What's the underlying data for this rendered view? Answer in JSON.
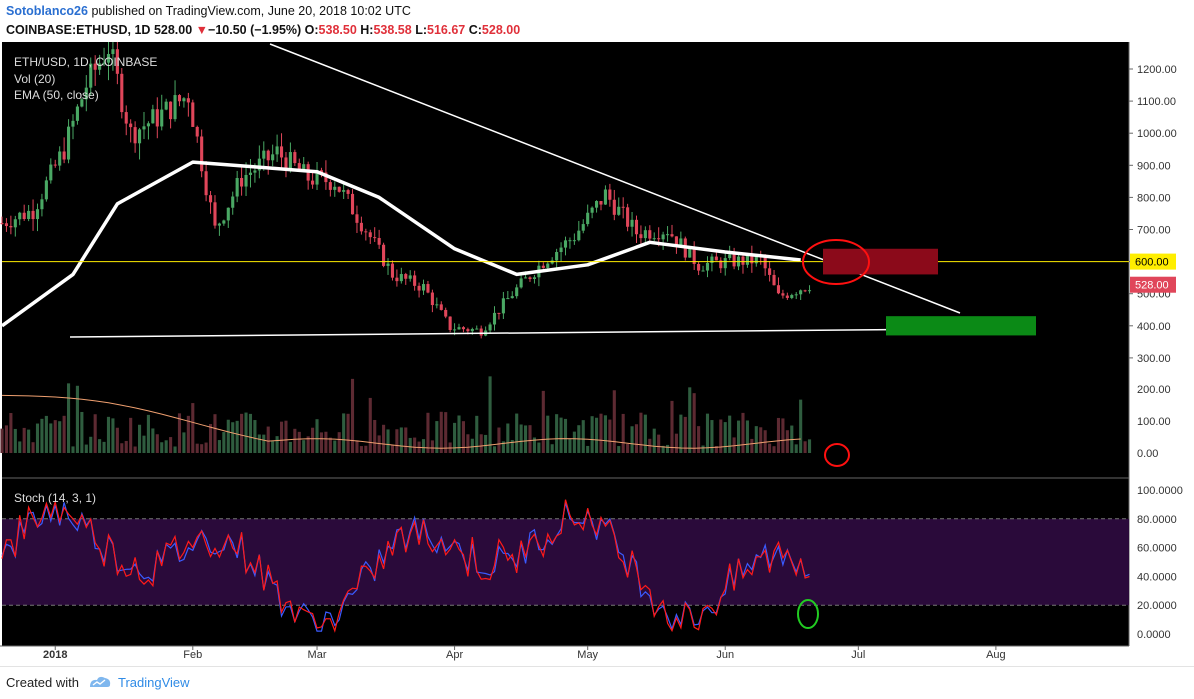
{
  "header": {
    "author": "Sotoblanco26",
    "published_text": "published on TradingView.com, June 20, 2018 10:02 UTC",
    "symbol": "COINBASE:ETHUSD, 1D",
    "last": "528.00",
    "change_arrow": "▼",
    "change": "−10.50 (−1.95%)",
    "o_label": "O:",
    "o_val": "538.50",
    "h_label": "H:",
    "h_val": "538.58",
    "l_label": "L:",
    "l_val": "516.67",
    "c_label": "C:",
    "c_val": "528.00"
  },
  "footer": {
    "created_with": "Created with",
    "brand": "TradingView"
  },
  "colors": {
    "bg": "#000000",
    "up": "#4aa864",
    "down": "#e0465a",
    "ema": "#ffffff",
    "level": "#ffee00",
    "stoch_k": "#3b5bff",
    "stoch_d": "#ff1a1a",
    "stoch_band": "#2a0a3a"
  },
  "chart_data": [
    {
      "type": "candlestick",
      "legend": [
        "ETH/USD, 1D, COINBASE",
        "Vol (20)",
        "EMA (50, close)"
      ],
      "y_ticks": [
        "1200.00",
        "1100.00",
        "1000.00",
        "900.00",
        "800.00",
        "700.00",
        "600.00",
        "500.00",
        "400.00",
        "300.00"
      ],
      "ylim": [
        280,
        1260
      ],
      "x_ticks": [
        "2018",
        "Feb",
        "Mar",
        "Apr",
        "May",
        "Jun",
        "Jul",
        "Aug"
      ],
      "price_labels": [
        {
          "value": 600,
          "text": "600.00"
        },
        {
          "value": 528,
          "text": "528.00"
        }
      ],
      "close_series": [
        {
          "date": "2017-12-20",
          "close": 720
        },
        {
          "date": "2017-12-27",
          "close": 760
        },
        {
          "date": "2018-01-03",
          "close": 950
        },
        {
          "date": "2018-01-08",
          "close": 1150
        },
        {
          "date": "2018-01-13",
          "close": 1270
        },
        {
          "date": "2018-01-18",
          "close": 1000
        },
        {
          "date": "2018-01-24",
          "close": 1050
        },
        {
          "date": "2018-01-31",
          "close": 1120
        },
        {
          "date": "2018-02-06",
          "close": 700
        },
        {
          "date": "2018-02-12",
          "close": 860
        },
        {
          "date": "2018-02-20",
          "close": 940
        },
        {
          "date": "2018-02-27",
          "close": 860
        },
        {
          "date": "2018-03-05",
          "close": 850
        },
        {
          "date": "2018-03-12",
          "close": 700
        },
        {
          "date": "2018-03-18",
          "close": 560
        },
        {
          "date": "2018-03-25",
          "close": 520
        },
        {
          "date": "2018-03-31",
          "close": 395
        },
        {
          "date": "2018-04-07",
          "close": 385
        },
        {
          "date": "2018-04-14",
          "close": 500
        },
        {
          "date": "2018-04-21",
          "close": 600
        },
        {
          "date": "2018-04-28",
          "close": 680
        },
        {
          "date": "2018-05-05",
          "close": 810
        },
        {
          "date": "2018-05-12",
          "close": 690
        },
        {
          "date": "2018-05-19",
          "close": 700
        },
        {
          "date": "2018-05-26",
          "close": 590
        },
        {
          "date": "2018-06-02",
          "close": 600
        },
        {
          "date": "2018-06-09",
          "close": 605
        },
        {
          "date": "2018-06-13",
          "close": 490
        },
        {
          "date": "2018-06-20",
          "close": 528
        }
      ],
      "ema_series": [
        {
          "date": "2017-12-20",
          "value": 400
        },
        {
          "date": "2018-01-05",
          "value": 560
        },
        {
          "date": "2018-01-15",
          "value": 780
        },
        {
          "date": "2018-02-01",
          "value": 910
        },
        {
          "date": "2018-02-15",
          "value": 895
        },
        {
          "date": "2018-03-01",
          "value": 880
        },
        {
          "date": "2018-03-15",
          "value": 800
        },
        {
          "date": "2018-04-01",
          "value": 640
        },
        {
          "date": "2018-04-15",
          "value": 560
        },
        {
          "date": "2018-05-01",
          "value": 590
        },
        {
          "date": "2018-05-15",
          "value": 660
        },
        {
          "date": "2018-06-01",
          "value": 630
        },
        {
          "date": "2018-06-18",
          "value": 605
        }
      ],
      "annotations": [
        "descending trendline",
        "support line ~375",
        "horizontal level 600",
        "sell zone 560-640",
        "buy zone 370-430"
      ]
    },
    {
      "type": "bar",
      "name": "Vol (20)",
      "y_ticks": [
        "200.00",
        "100.00",
        "0.00"
      ]
    },
    {
      "type": "line",
      "name": "Stoch (14, 3, 1)",
      "legend": "Stoch (14, 3, 1)",
      "y_ticks": [
        "100.0000",
        "80.0000",
        "60.0000",
        "40.0000",
        "20.0000",
        "0.0000"
      ],
      "ylim": [
        0,
        100
      ],
      "bands": [
        20,
        80
      ]
    }
  ]
}
